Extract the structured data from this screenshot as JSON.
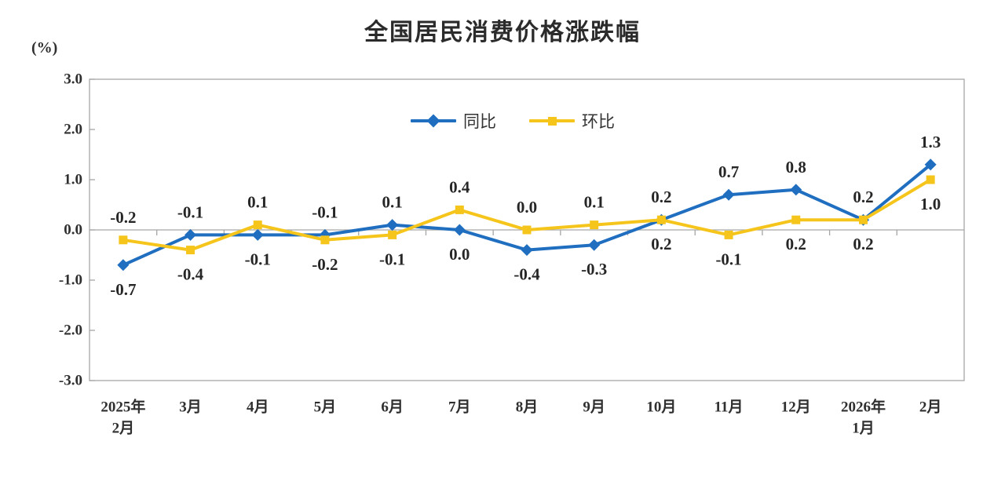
{
  "title": "全国居民消费价格涨跌幅",
  "unit_label": "(%)",
  "chart_data": {
    "type": "line",
    "title": "全国居民消费价格涨跌幅",
    "ylabel": "(%)",
    "ylim": [
      -3.0,
      3.0
    ],
    "yticks": [
      "3.0",
      "2.0",
      "1.0",
      "0.0",
      "-1.0",
      "-2.0",
      "-3.0"
    ],
    "grid": "zero-line-only",
    "legend_position": "top-center-inside",
    "data_labels": true,
    "categories": [
      [
        "2025年",
        "2月"
      ],
      [
        "3月"
      ],
      [
        "4月"
      ],
      [
        "5月"
      ],
      [
        "6月"
      ],
      [
        "7月"
      ],
      [
        "8月"
      ],
      [
        "9月"
      ],
      [
        "10月"
      ],
      [
        "11月"
      ],
      [
        "12月"
      ],
      [
        "2026年",
        "1月"
      ],
      [
        "2月"
      ]
    ],
    "series": [
      {
        "name": "同比",
        "marker": "diamond",
        "color": "#1F6EC0",
        "values": [
          -0.7,
          -0.1,
          -0.1,
          -0.1,
          0.1,
          0.0,
          -0.4,
          -0.3,
          0.2,
          0.7,
          0.8,
          0.2,
          1.3
        ]
      },
      {
        "name": "环比",
        "marker": "square",
        "color": "#F5C51C",
        "values": [
          -0.2,
          -0.4,
          0.1,
          -0.2,
          -0.1,
          0.4,
          0.0,
          0.1,
          0.2,
          -0.1,
          0.2,
          0.2,
          1.0
        ]
      }
    ],
    "axis_color": "#A6A6A6",
    "text_color": "#2f2f2f"
  }
}
